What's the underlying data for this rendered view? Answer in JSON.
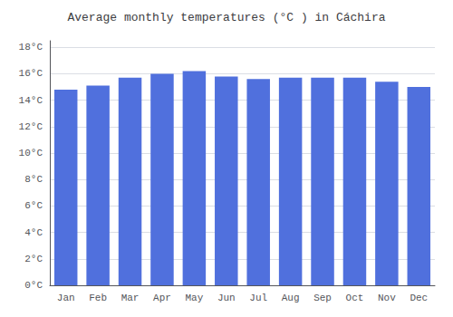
{
  "chart_data": {
    "type": "bar",
    "title": "Average monthly temperatures (°C ) in Cáchira",
    "categories": [
      "Jan",
      "Feb",
      "Mar",
      "Apr",
      "May",
      "Jun",
      "Jul",
      "Aug",
      "Sep",
      "Oct",
      "Nov",
      "Dec"
    ],
    "values": [
      14.8,
      15.1,
      15.7,
      16.0,
      16.2,
      15.8,
      15.6,
      15.7,
      15.7,
      15.7,
      15.4,
      15.0
    ],
    "ylim": [
      0,
      18.5
    ],
    "yticks": [
      {
        "value": 0,
        "label": "0°C"
      },
      {
        "value": 2,
        "label": "2°C"
      },
      {
        "value": 4,
        "label": "4°C"
      },
      {
        "value": 6,
        "label": "6°C"
      },
      {
        "value": 8,
        "label": "8°C"
      },
      {
        "value": 10,
        "label": "10°C"
      },
      {
        "value": 12,
        "label": "12°C"
      },
      {
        "value": 14,
        "label": "14°C"
      },
      {
        "value": 16,
        "label": "16°C"
      },
      {
        "value": 18,
        "label": "18°C"
      }
    ],
    "grid": true
  }
}
